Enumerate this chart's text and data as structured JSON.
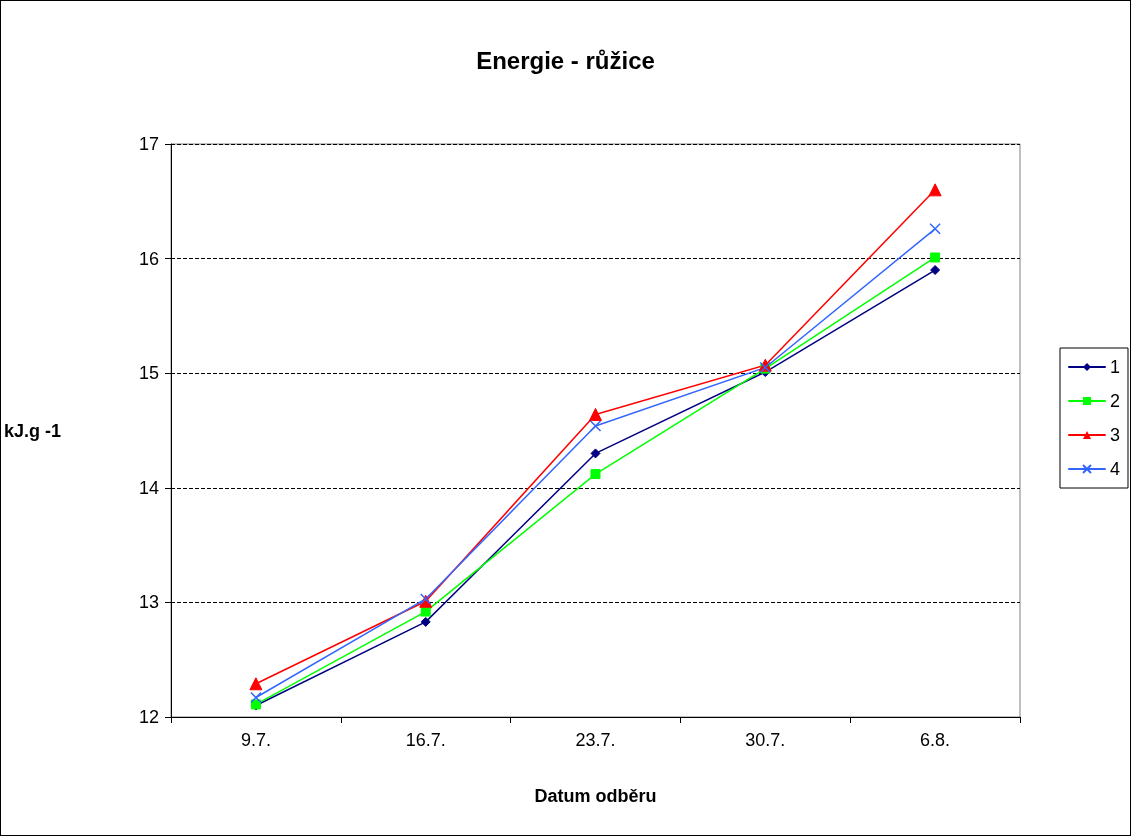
{
  "chart_data": {
    "type": "line",
    "title": "Energie - růžice",
    "xlabel": "Datum odběru",
    "ylabel": "kJ.g -1",
    "categories": [
      "9.7.",
      "16.7.",
      "23.7.",
      "30.7.",
      "6.8."
    ],
    "series": [
      {
        "name": "1",
        "color": "#000080",
        "marker": "diamond",
        "values": [
          12.1,
          12.83,
          14.3,
          15.01,
          15.9
        ]
      },
      {
        "name": "2",
        "color": "#00ff00",
        "marker": "square",
        "values": [
          12.11,
          12.92,
          14.12,
          15.04,
          16.01
        ]
      },
      {
        "name": "3",
        "color": "#ff0000",
        "marker": "triangle",
        "values": [
          12.29,
          13.01,
          14.64,
          15.07,
          16.6
        ]
      },
      {
        "name": "4",
        "color": "#3366ff",
        "marker": "cross",
        "values": [
          12.17,
          13.03,
          14.54,
          15.05,
          16.26
        ]
      }
    ],
    "ylim": [
      12,
      17
    ],
    "yticks": [
      12,
      13,
      14,
      15,
      16,
      17
    ],
    "grid": "y",
    "legend": "right",
    "line_style": "solid"
  }
}
